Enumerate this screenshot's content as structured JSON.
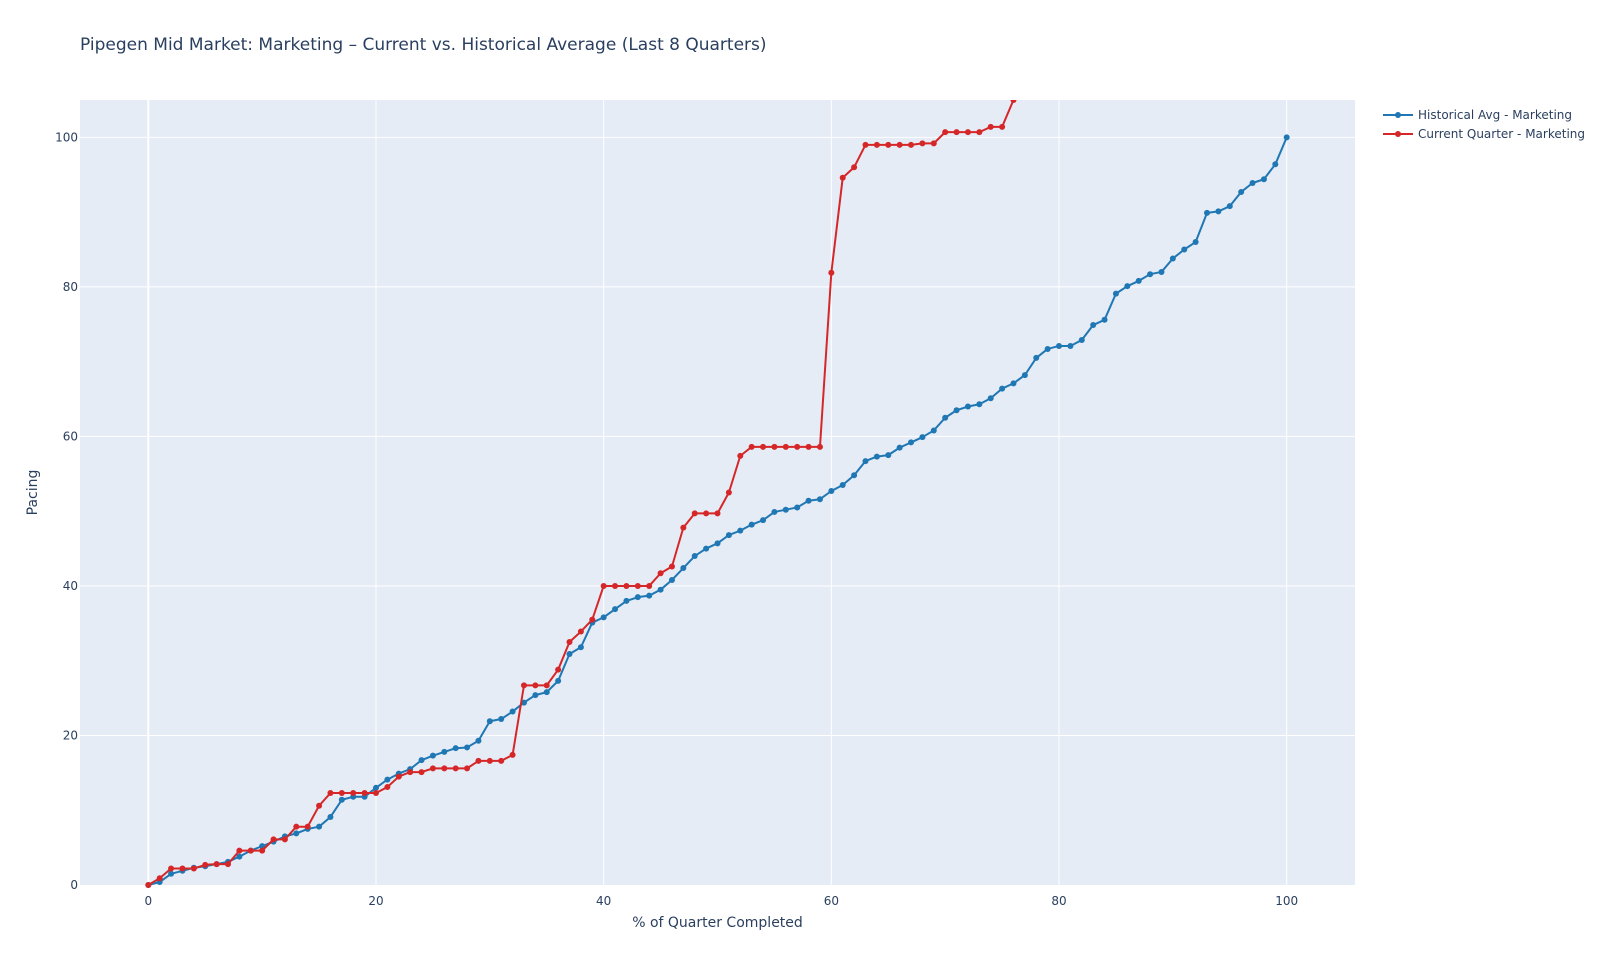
{
  "chart_data": {
    "type": "line",
    "title": "Pipegen Mid Market: Marketing – Current vs. Historical Average (Last 8 Quarters)",
    "xlabel": "% of Quarter Completed",
    "ylabel": "Pacing",
    "xlim": [
      -6,
      106
    ],
    "ylim": [
      0,
      105
    ],
    "x_ticks": [
      0,
      20,
      40,
      60,
      80,
      100
    ],
    "y_ticks": [
      0,
      20,
      40,
      60,
      80,
      100
    ],
    "grid": true,
    "legend_position": "top-right, outside plot",
    "background": "#e5ecf6",
    "series": [
      {
        "name": "Historical Avg - Marketing",
        "color": "#1f77b4",
        "x": [
          0,
          1,
          2,
          3,
          4,
          5,
          6,
          7,
          8,
          9,
          10,
          11,
          12,
          13,
          14,
          15,
          16,
          17,
          18,
          19,
          20,
          21,
          22,
          23,
          24,
          25,
          26,
          27,
          28,
          29,
          30,
          31,
          32,
          33,
          34,
          35,
          36,
          37,
          38,
          39,
          40,
          41,
          42,
          43,
          44,
          45,
          46,
          47,
          48,
          49,
          50,
          51,
          52,
          53,
          54,
          55,
          56,
          57,
          58,
          59,
          60,
          61,
          62,
          63,
          64,
          65,
          66,
          67,
          68,
          69,
          70,
          71,
          72,
          73,
          74,
          75,
          76,
          77,
          78,
          79,
          80,
          81,
          82,
          83,
          84,
          85,
          86,
          87,
          88,
          89,
          90,
          91,
          92,
          93,
          94,
          95,
          96,
          97,
          98,
          99,
          100
        ],
        "values": [
          0,
          0.4,
          1.5,
          1.9,
          2.3,
          2.5,
          2.8,
          3.1,
          3.8,
          4.6,
          5.2,
          5.8,
          6.5,
          6.9,
          7.5,
          7.8,
          9.1,
          11.4,
          11.8,
          11.8,
          13.0,
          14.1,
          14.9,
          15.5,
          16.7,
          17.3,
          17.8,
          18.3,
          18.4,
          19.3,
          21.9,
          22.2,
          23.2,
          24.4,
          25.4,
          25.8,
          27.3,
          30.9,
          31.8,
          35.1,
          35.8,
          36.9,
          38.0,
          38.5,
          38.7,
          39.5,
          40.8,
          42.4,
          44.0,
          45.0,
          45.7,
          46.8,
          47.4,
          48.2,
          48.8,
          49.9,
          50.2,
          50.5,
          51.4,
          51.6,
          52.7,
          53.5,
          54.8,
          56.7,
          57.3,
          57.5,
          58.5,
          59.2,
          59.9,
          60.8,
          62.5,
          63.5,
          64.0,
          64.3,
          65.1,
          66.4,
          67.1,
          68.2,
          70.5,
          71.7,
          72.1,
          72.1,
          72.9,
          74.9,
          75.6,
          79.1,
          80.1,
          80.8,
          81.7,
          82.0,
          83.8,
          85.0,
          86.0,
          89.9,
          90.1,
          90.8,
          92.7,
          93.9,
          94.4,
          96.4,
          100.0
        ]
      },
      {
        "name": "Current Quarter - Marketing",
        "color": "#d62728",
        "x": [
          0,
          1,
          2,
          3,
          4,
          5,
          6,
          7,
          8,
          9,
          10,
          11,
          12,
          13,
          14,
          15,
          16,
          17,
          18,
          19,
          20,
          21,
          22,
          23,
          24,
          25,
          26,
          27,
          28,
          29,
          30,
          31,
          32,
          33,
          34,
          35,
          36,
          37,
          38,
          39,
          40,
          41,
          42,
          43,
          44,
          45,
          46,
          47,
          48,
          49,
          50,
          51,
          52,
          53,
          54,
          55,
          56,
          57,
          58,
          59,
          60,
          61,
          62,
          63,
          64,
          65,
          66,
          67,
          68,
          69,
          70,
          71,
          72,
          73,
          74,
          75,
          76
        ],
        "values": [
          0,
          0.9,
          2.2,
          2.2,
          2.2,
          2.7,
          2.8,
          2.8,
          4.6,
          4.6,
          4.6,
          6.1,
          6.1,
          7.8,
          7.8,
          10.6,
          12.3,
          12.3,
          12.3,
          12.3,
          12.3,
          13.1,
          14.5,
          15.1,
          15.1,
          15.6,
          15.6,
          15.6,
          15.6,
          16.6,
          16.6,
          16.6,
          17.4,
          26.7,
          26.7,
          26.7,
          28.8,
          32.5,
          33.9,
          35.5,
          40.0,
          40.0,
          40.0,
          40.0,
          40.0,
          41.7,
          42.6,
          47.8,
          49.7,
          49.7,
          49.7,
          52.5,
          57.4,
          58.6,
          58.6,
          58.6,
          58.6,
          58.6,
          58.6,
          58.6,
          81.9,
          94.6,
          96.0,
          99.0,
          99.0,
          99.0,
          99.0,
          99.0,
          99.2,
          99.2,
          100.7,
          100.7,
          100.7,
          100.7,
          101.4,
          101.4,
          105.0
        ]
      }
    ]
  }
}
